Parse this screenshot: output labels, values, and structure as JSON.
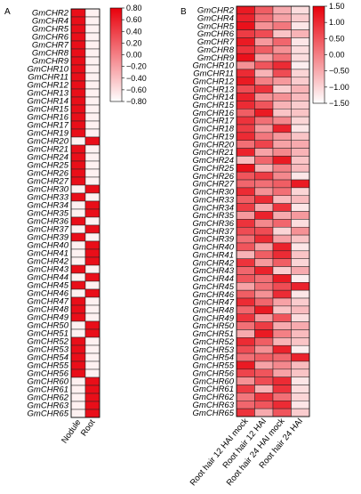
{
  "chart_data": [
    {
      "panel": "A",
      "type": "heatmap",
      "rows": [
        "GmCHR2",
        "GmCHR4",
        "GmCHR5",
        "GmCHR6",
        "GmCHR7",
        "GmCHR8",
        "GmCHR9",
        "GmCHR10",
        "GmCHR11",
        "GmCHR12",
        "GmCHR13",
        "GmCHR14",
        "GmCHR15",
        "GmCHR16",
        "GmCHR17",
        "GmCHR19",
        "GmCHR20",
        "GmCHR21",
        "GmCHR24",
        "GmCHR25",
        "GmCHR26",
        "GmCHR27",
        "GmCHR30",
        "GmCHR33",
        "GmCHR34",
        "GmCHR35",
        "GmCHR36",
        "GmCHR37",
        "GmCHR39",
        "GmCHR40",
        "GmCHR41",
        "GmCHR42",
        "GmCHR43",
        "GmCHR44",
        "GmCHR45",
        "GmCHR46",
        "GmCHR47",
        "GmCHR48",
        "GmCHR49",
        "GmCHR50",
        "GmCHR51",
        "GmCHR52",
        "GmCHR53",
        "GmCHR54",
        "GmCHR55",
        "GmCHR56",
        "GmCHR60",
        "GmCHR61",
        "GmCHR62",
        "GmCHR63",
        "GmCHR65"
      ],
      "columns": [
        "Nodule",
        "Root"
      ],
      "values": [
        [
          0.71,
          -0.71
        ],
        [
          0.71,
          -0.71
        ],
        [
          0.71,
          -0.71
        ],
        [
          0.71,
          -0.71
        ],
        [
          0.71,
          -0.71
        ],
        [
          0.71,
          -0.71
        ],
        [
          0.71,
          -0.71
        ],
        [
          0.71,
          -0.71
        ],
        [
          0.71,
          -0.71
        ],
        [
          0.71,
          -0.71
        ],
        [
          0.71,
          -0.71
        ],
        [
          0.71,
          -0.71
        ],
        [
          0.71,
          -0.71
        ],
        [
          0.71,
          -0.71
        ],
        [
          0.71,
          -0.71
        ],
        [
          0.71,
          -0.71
        ],
        [
          -0.71,
          0.71
        ],
        [
          0.71,
          -0.71
        ],
        [
          0.71,
          -0.71
        ],
        [
          0.71,
          -0.71
        ],
        [
          0.71,
          -0.71
        ],
        [
          0.71,
          -0.71
        ],
        [
          -0.71,
          0.71
        ],
        [
          0.71,
          -0.71
        ],
        [
          -0.71,
          0.71
        ],
        [
          -0.71,
          0.71
        ],
        [
          0.71,
          -0.71
        ],
        [
          -0.71,
          0.71
        ],
        [
          0.71,
          -0.71
        ],
        [
          -0.71,
          0.71
        ],
        [
          -0.71,
          0.71
        ],
        [
          -0.71,
          0.71
        ],
        [
          0.71,
          -0.71
        ],
        [
          -0.71,
          0.71
        ],
        [
          0.71,
          -0.71
        ],
        [
          -0.71,
          0.71
        ],
        [
          0.71,
          -0.71
        ],
        [
          0.71,
          -0.71
        ],
        [
          0.71,
          -0.71
        ],
        [
          -0.71,
          0.71
        ],
        [
          -0.71,
          0.71
        ],
        [
          0.71,
          -0.71
        ],
        [
          0.71,
          -0.71
        ],
        [
          0.71,
          -0.71
        ],
        [
          0.71,
          -0.71
        ],
        [
          0.71,
          -0.71
        ],
        [
          -0.71,
          0.71
        ],
        [
          -0.71,
          0.71
        ],
        [
          -0.71,
          0.71
        ],
        [
          -0.71,
          0.71
        ],
        [
          -0.71,
          0.71
        ]
      ],
      "colorbar": {
        "min": -0.8,
        "max": 0.8,
        "ticks": [
          "0.80",
          "0.60",
          "0.40",
          "0.20",
          "0.00",
          "−0.20",
          "−0.40",
          "−0.60",
          "−0.80"
        ],
        "low_color": "#ffffff",
        "high_color": "#e8000b"
      }
    },
    {
      "panel": "B",
      "type": "heatmap",
      "rows": [
        "GmCHR2",
        "GmCHR4",
        "GmCHR5",
        "GmCHR6",
        "GmCHR7",
        "GmCHR8",
        "GmCHR9",
        "GmCHR10",
        "GmCHR11",
        "GmCHR12",
        "GmCHR13",
        "GmCHR14",
        "GmCHR15",
        "GmCHR16",
        "GmCHR17",
        "GmCHR18",
        "GmCHR19",
        "GmCHR20",
        "GmCHR21",
        "GmCHR24",
        "GmCHR25",
        "GmCHR26",
        "GmCHR27",
        "GmCHR30",
        "GmCHR33",
        "GmCHR34",
        "GmCHR35",
        "GmCHR36",
        "GmCHR37",
        "GmCHR39",
        "GmCHR40",
        "GmCHR41",
        "GmCHR42",
        "GmCHR43",
        "GmCHR44",
        "GmCHR45",
        "GmCHR46",
        "GmCHR47",
        "GmCHR48",
        "GmCHR49",
        "GmCHR50",
        "GmCHR51",
        "GmCHR52",
        "GmCHR53",
        "GmCHR54",
        "GmCHR55",
        "GmCHR56",
        "GmCHR60",
        "GmCHR61",
        "GmCHR62",
        "GmCHR63",
        "GmCHR65"
      ],
      "columns": [
        "Root hair 12 HAI mock",
        "Root hair 12 HAI",
        "Root hair 24 HAI mock",
        "Root hair 24 HAI"
      ],
      "values": [
        [
          1.2,
          0.4,
          -0.5,
          -1.1
        ],
        [
          1.1,
          0.2,
          -0.4,
          -0.9
        ],
        [
          1.3,
          -0.2,
          0.1,
          -1.2
        ],
        [
          0.8,
          0.6,
          -0.8,
          -0.6
        ],
        [
          1.2,
          -0.3,
          0.3,
          -1.2
        ],
        [
          0.9,
          0.4,
          -0.2,
          -1.1
        ],
        [
          1.3,
          -0.4,
          0.2,
          -1.1
        ],
        [
          -0.2,
          0.5,
          1.0,
          -1.3
        ],
        [
          1.0,
          -0.6,
          0.6,
          -1.0
        ],
        [
          1.2,
          0.0,
          -0.3,
          -0.9
        ],
        [
          0.6,
          0.9,
          -0.9,
          -0.6
        ],
        [
          1.1,
          -0.2,
          -0.2,
          -0.7
        ],
        [
          1.0,
          0.5,
          -0.6,
          -0.9
        ],
        [
          0.4,
          1.2,
          -0.8,
          -0.8
        ],
        [
          0.9,
          0.2,
          -0.1,
          -1.0
        ],
        [
          0.8,
          -0.3,
          1.1,
          -1.2
        ],
        [
          1.0,
          0.1,
          -0.3,
          -0.8
        ],
        [
          0.2,
          0.7,
          -0.4,
          -0.5
        ],
        [
          1.1,
          -0.4,
          -0.1,
          -0.6
        ],
        [
          -0.7,
          0.3,
          1.2,
          -0.8
        ],
        [
          1.3,
          -0.6,
          0.0,
          -0.7
        ],
        [
          0.5,
          0.8,
          -0.1,
          -1.2
        ],
        [
          0.3,
          0.2,
          0.4,
          1.2
        ],
        [
          1.0,
          -0.2,
          0.2,
          -1.0
        ],
        [
          0.4,
          1.0,
          -0.7,
          -0.7
        ],
        [
          0.8,
          -0.5,
          0.9,
          -1.2
        ],
        [
          -0.3,
          1.1,
          -0.5,
          -0.3
        ],
        [
          0.9,
          -0.1,
          0.3,
          -1.1
        ],
        [
          0.6,
          0.6,
          -1.0,
          -0.2
        ],
        [
          0.2,
          1.0,
          -0.4,
          -0.8
        ],
        [
          0.5,
          -0.4,
          1.1,
          -1.2
        ],
        [
          -0.6,
          0.4,
          1.0,
          -0.8
        ],
        [
          0.9,
          -0.3,
          0.4,
          -1.0
        ],
        [
          0.3,
          1.1,
          -0.9,
          -0.5
        ],
        [
          0.5,
          0.2,
          1.2,
          -1.3
        ],
        [
          -0.4,
          0.2,
          0.6,
          1.1
        ],
        [
          0.4,
          -0.2,
          1.0,
          -1.2
        ],
        [
          1.0,
          0.3,
          -0.4,
          -0.9
        ],
        [
          0.3,
          1.2,
          -0.8,
          -0.7
        ],
        [
          0.9,
          -0.3,
          0.5,
          -1.1
        ],
        [
          0.2,
          0.8,
          -0.5,
          -0.5
        ],
        [
          -0.5,
          1.2,
          0.0,
          -0.7
        ],
        [
          1.0,
          0.4,
          -0.6,
          -0.8
        ],
        [
          0.6,
          -0.2,
          1.1,
          -1.3
        ],
        [
          0.2,
          0.4,
          0.3,
          1.1
        ],
        [
          1.2,
          -0.4,
          -0.1,
          -0.7
        ],
        [
          0.7,
          0.5,
          -0.4,
          -0.8
        ],
        [
          -0.2,
          0.6,
          1.0,
          -1.2
        ],
        [
          0.8,
          -0.6,
          0.9,
          -1.1
        ],
        [
          0.1,
          0.9,
          0.2,
          -1.0
        ],
        [
          0.3,
          0.5,
          1.0,
          -1.2
        ],
        [
          0.9,
          -0.5,
          0.5,
          -0.9
        ]
      ],
      "colorbar": {
        "min": -1.5,
        "max": 1.5,
        "ticks": [
          "1.50",
          "1.00",
          "0.50",
          "0.00",
          "−0.50",
          "−1.00",
          "−1.50"
        ],
        "low_color": "#ffffff",
        "high_color": "#e8000b"
      }
    }
  ],
  "panel_labels": {
    "a": "A",
    "b": "B"
  }
}
